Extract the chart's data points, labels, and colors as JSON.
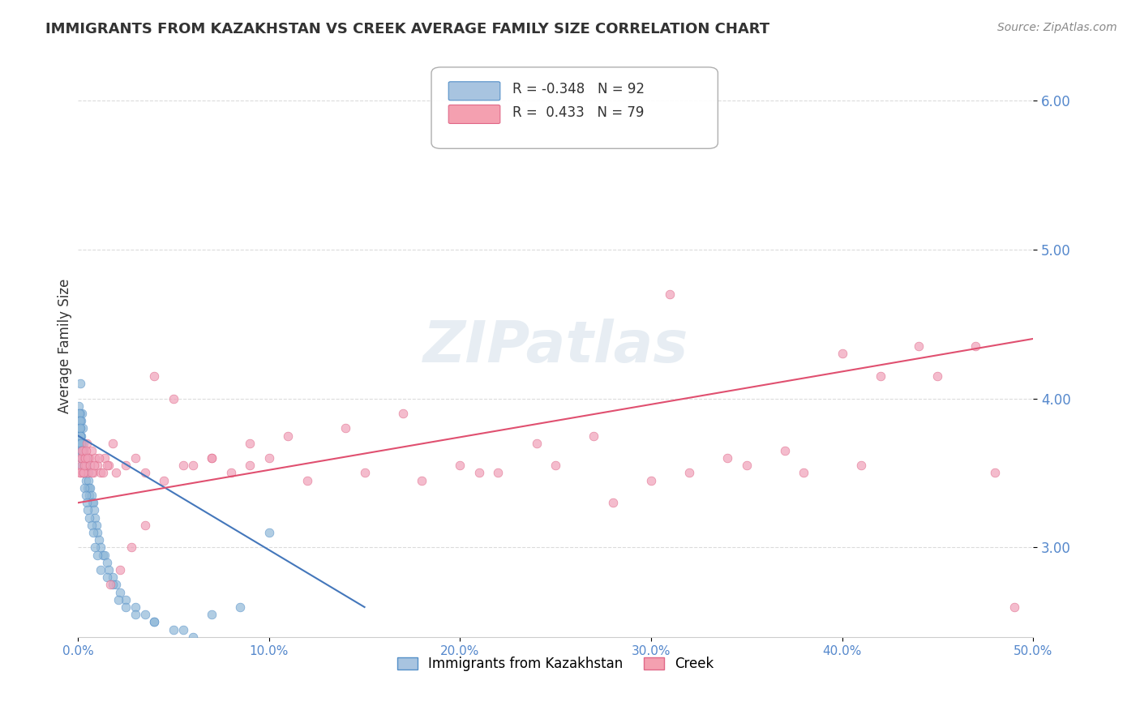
{
  "title": "IMMIGRANTS FROM KAZAKHSTAN VS CREEK AVERAGE FAMILY SIZE CORRELATION CHART",
  "source": "Source: ZipAtlas.com",
  "xlabel": "",
  "ylabel": "Average Family Size",
  "legend_entries": [
    {
      "label": "Immigrants from Kazakhstan",
      "color": "#a8c4e0",
      "R": -0.348,
      "N": 92
    },
    {
      "label": "Creek",
      "color": "#f4a0b0",
      "R": 0.433,
      "N": 79
    }
  ],
  "xlim": [
    0.0,
    50.0
  ],
  "ylim": [
    2.4,
    6.3
  ],
  "yticks": [
    3.0,
    4.0,
    5.0,
    6.0
  ],
  "xticks": [
    0.0,
    10.0,
    20.0,
    30.0,
    40.0,
    50.0
  ],
  "xtick_labels": [
    "0.0%",
    "10.0%",
    "20.0%",
    "30.0%",
    "40.0%",
    "50.0%"
  ],
  "background_color": "#ffffff",
  "grid_color": "#cccccc",
  "title_fontsize": 13,
  "axis_label_color": "#5588cc",
  "watermark": "ZIPatlas",
  "blue_scatter": {
    "x": [
      0.1,
      0.1,
      0.1,
      0.15,
      0.15,
      0.2,
      0.2,
      0.2,
      0.25,
      0.25,
      0.3,
      0.3,
      0.3,
      0.35,
      0.35,
      0.4,
      0.4,
      0.4,
      0.45,
      0.45,
      0.5,
      0.5,
      0.55,
      0.55,
      0.6,
      0.6,
      0.65,
      0.7,
      0.75,
      0.8,
      0.85,
      0.9,
      0.95,
      1.0,
      1.1,
      1.2,
      1.3,
      1.4,
      1.5,
      1.6,
      1.8,
      2.0,
      2.2,
      2.5,
      3.0,
      3.5,
      4.0,
      5.0,
      6.0,
      7.0,
      0.05,
      0.05,
      0.05,
      0.05,
      0.08,
      0.08,
      0.08,
      0.1,
      0.1,
      0.1,
      0.12,
      0.12,
      0.15,
      0.15,
      0.18,
      0.18,
      0.2,
      0.2,
      0.22,
      0.25,
      0.28,
      0.3,
      0.35,
      0.4,
      0.45,
      0.5,
      0.6,
      0.7,
      0.8,
      0.9,
      1.0,
      1.2,
      1.5,
      1.8,
      2.1,
      2.5,
      3.0,
      4.0,
      5.5,
      7.0,
      8.5,
      10.0
    ],
    "y": [
      4.1,
      3.9,
      3.8,
      3.75,
      3.85,
      3.9,
      3.7,
      3.6,
      3.8,
      3.6,
      3.7,
      3.55,
      3.65,
      3.6,
      3.5,
      3.55,
      3.45,
      3.6,
      3.5,
      3.55,
      3.5,
      3.4,
      3.45,
      3.5,
      3.4,
      3.35,
      3.4,
      3.35,
      3.3,
      3.3,
      3.25,
      3.2,
      3.15,
      3.1,
      3.05,
      3.0,
      2.95,
      2.95,
      2.9,
      2.85,
      2.8,
      2.75,
      2.7,
      2.65,
      2.6,
      2.55,
      2.5,
      2.45,
      2.4,
      2.35,
      3.95,
      3.9,
      3.85,
      3.8,
      3.9,
      3.85,
      3.8,
      3.75,
      3.85,
      3.8,
      3.75,
      3.7,
      3.7,
      3.65,
      3.65,
      3.6,
      3.6,
      3.55,
      3.55,
      3.5,
      3.5,
      3.5,
      3.4,
      3.35,
      3.3,
      3.25,
      3.2,
      3.15,
      3.1,
      3.0,
      2.95,
      2.85,
      2.8,
      2.75,
      2.65,
      2.6,
      2.55,
      2.5,
      2.45,
      2.55,
      2.6,
      3.1
    ],
    "color": "#90b8d8",
    "edgecolor": "#5590c8",
    "size": 60,
    "alpha": 0.7
  },
  "pink_scatter": {
    "x": [
      0.1,
      0.15,
      0.2,
      0.25,
      0.3,
      0.35,
      0.4,
      0.45,
      0.5,
      0.6,
      0.7,
      0.8,
      0.9,
      1.0,
      1.2,
      1.4,
      1.6,
      1.8,
      2.0,
      2.5,
      3.0,
      3.5,
      4.0,
      5.0,
      6.0,
      7.0,
      8.0,
      9.0,
      10.0,
      12.0,
      15.0,
      18.0,
      20.0,
      22.0,
      25.0,
      28.0,
      30.0,
      32.0,
      35.0,
      38.0,
      40.0,
      42.0,
      45.0,
      0.12,
      0.18,
      0.22,
      0.28,
      0.32,
      0.38,
      0.42,
      0.52,
      0.62,
      0.72,
      0.85,
      1.1,
      1.3,
      1.5,
      1.7,
      2.2,
      2.8,
      3.5,
      4.5,
      5.5,
      7.0,
      9.0,
      11.0,
      14.0,
      17.0,
      21.0,
      24.0,
      27.0,
      31.0,
      34.0,
      37.0,
      41.0,
      44.0,
      47.0,
      48.0,
      49.0
    ],
    "y": [
      3.5,
      3.55,
      3.6,
      3.5,
      3.65,
      3.6,
      3.55,
      3.7,
      3.5,
      3.6,
      3.65,
      3.5,
      3.6,
      3.55,
      3.5,
      3.6,
      3.55,
      3.7,
      3.5,
      3.55,
      3.6,
      3.5,
      4.15,
      4.0,
      3.55,
      3.6,
      3.5,
      3.55,
      3.6,
      3.45,
      3.5,
      3.45,
      3.55,
      3.5,
      3.55,
      3.3,
      3.45,
      3.5,
      3.55,
      3.5,
      4.3,
      4.15,
      4.15,
      3.5,
      3.6,
      3.65,
      3.5,
      3.55,
      3.6,
      3.65,
      3.6,
      3.55,
      3.5,
      3.55,
      3.6,
      3.5,
      3.55,
      2.75,
      2.85,
      3.0,
      3.15,
      3.45,
      3.55,
      3.6,
      3.7,
      3.75,
      3.8,
      3.9,
      3.5,
      3.7,
      3.75,
      4.7,
      3.6,
      3.65,
      3.55,
      4.35,
      4.35,
      3.5,
      2.6
    ],
    "color": "#f0a0b8",
    "edgecolor": "#e06888",
    "size": 60,
    "alpha": 0.7
  },
  "blue_trendline": {
    "x_start": 0.0,
    "x_end": 15.0,
    "y_start": 3.75,
    "y_end": 2.6,
    "color": "#4477bb",
    "linewidth": 1.5
  },
  "pink_trendline": {
    "x_start": 0.0,
    "x_end": 50.0,
    "y_start": 3.3,
    "y_end": 4.4,
    "color": "#e05070",
    "linewidth": 1.5
  }
}
